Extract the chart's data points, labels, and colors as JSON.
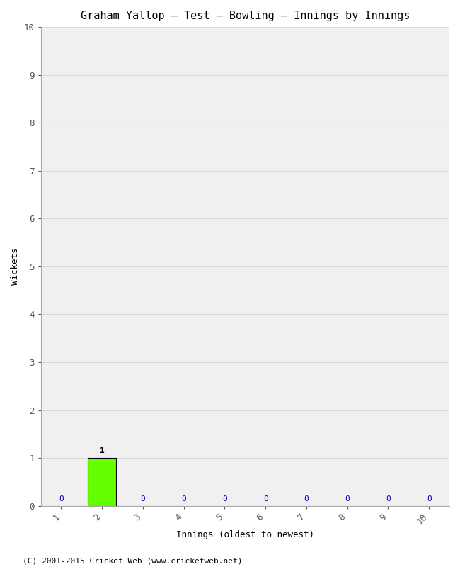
{
  "title": "Graham Yallop – Test – Bowling – Innings by Innings",
  "xlabel": "Innings (oldest to newest)",
  "ylabel": "Wickets",
  "innings": [
    1,
    2,
    3,
    4,
    5,
    6,
    7,
    8,
    9,
    10
  ],
  "wickets": [
    0,
    1,
    0,
    0,
    0,
    0,
    0,
    0,
    0,
    0
  ],
  "bar_color": "#66ff00",
  "bar_edge_color": "#000000",
  "zero_label_color": "#0000cc",
  "nonzero_label_color": "#000000",
  "ylim": [
    0,
    10
  ],
  "yticks": [
    0,
    1,
    2,
    3,
    4,
    5,
    6,
    7,
    8,
    9,
    10
  ],
  "xticks": [
    1,
    2,
    3,
    4,
    5,
    6,
    7,
    8,
    9,
    10
  ],
  "background_color": "#ffffff",
  "plot_bg_color": "#f0f0f0",
  "grid_color": "#d8d8d8",
  "footer": "(C) 2001-2015 Cricket Web (www.cricketweb.net)",
  "title_fontsize": 11,
  "label_fontsize": 9,
  "tick_fontsize": 9,
  "footer_fontsize": 8,
  "bar_label_fontsize": 8,
  "bar_width": 0.7
}
